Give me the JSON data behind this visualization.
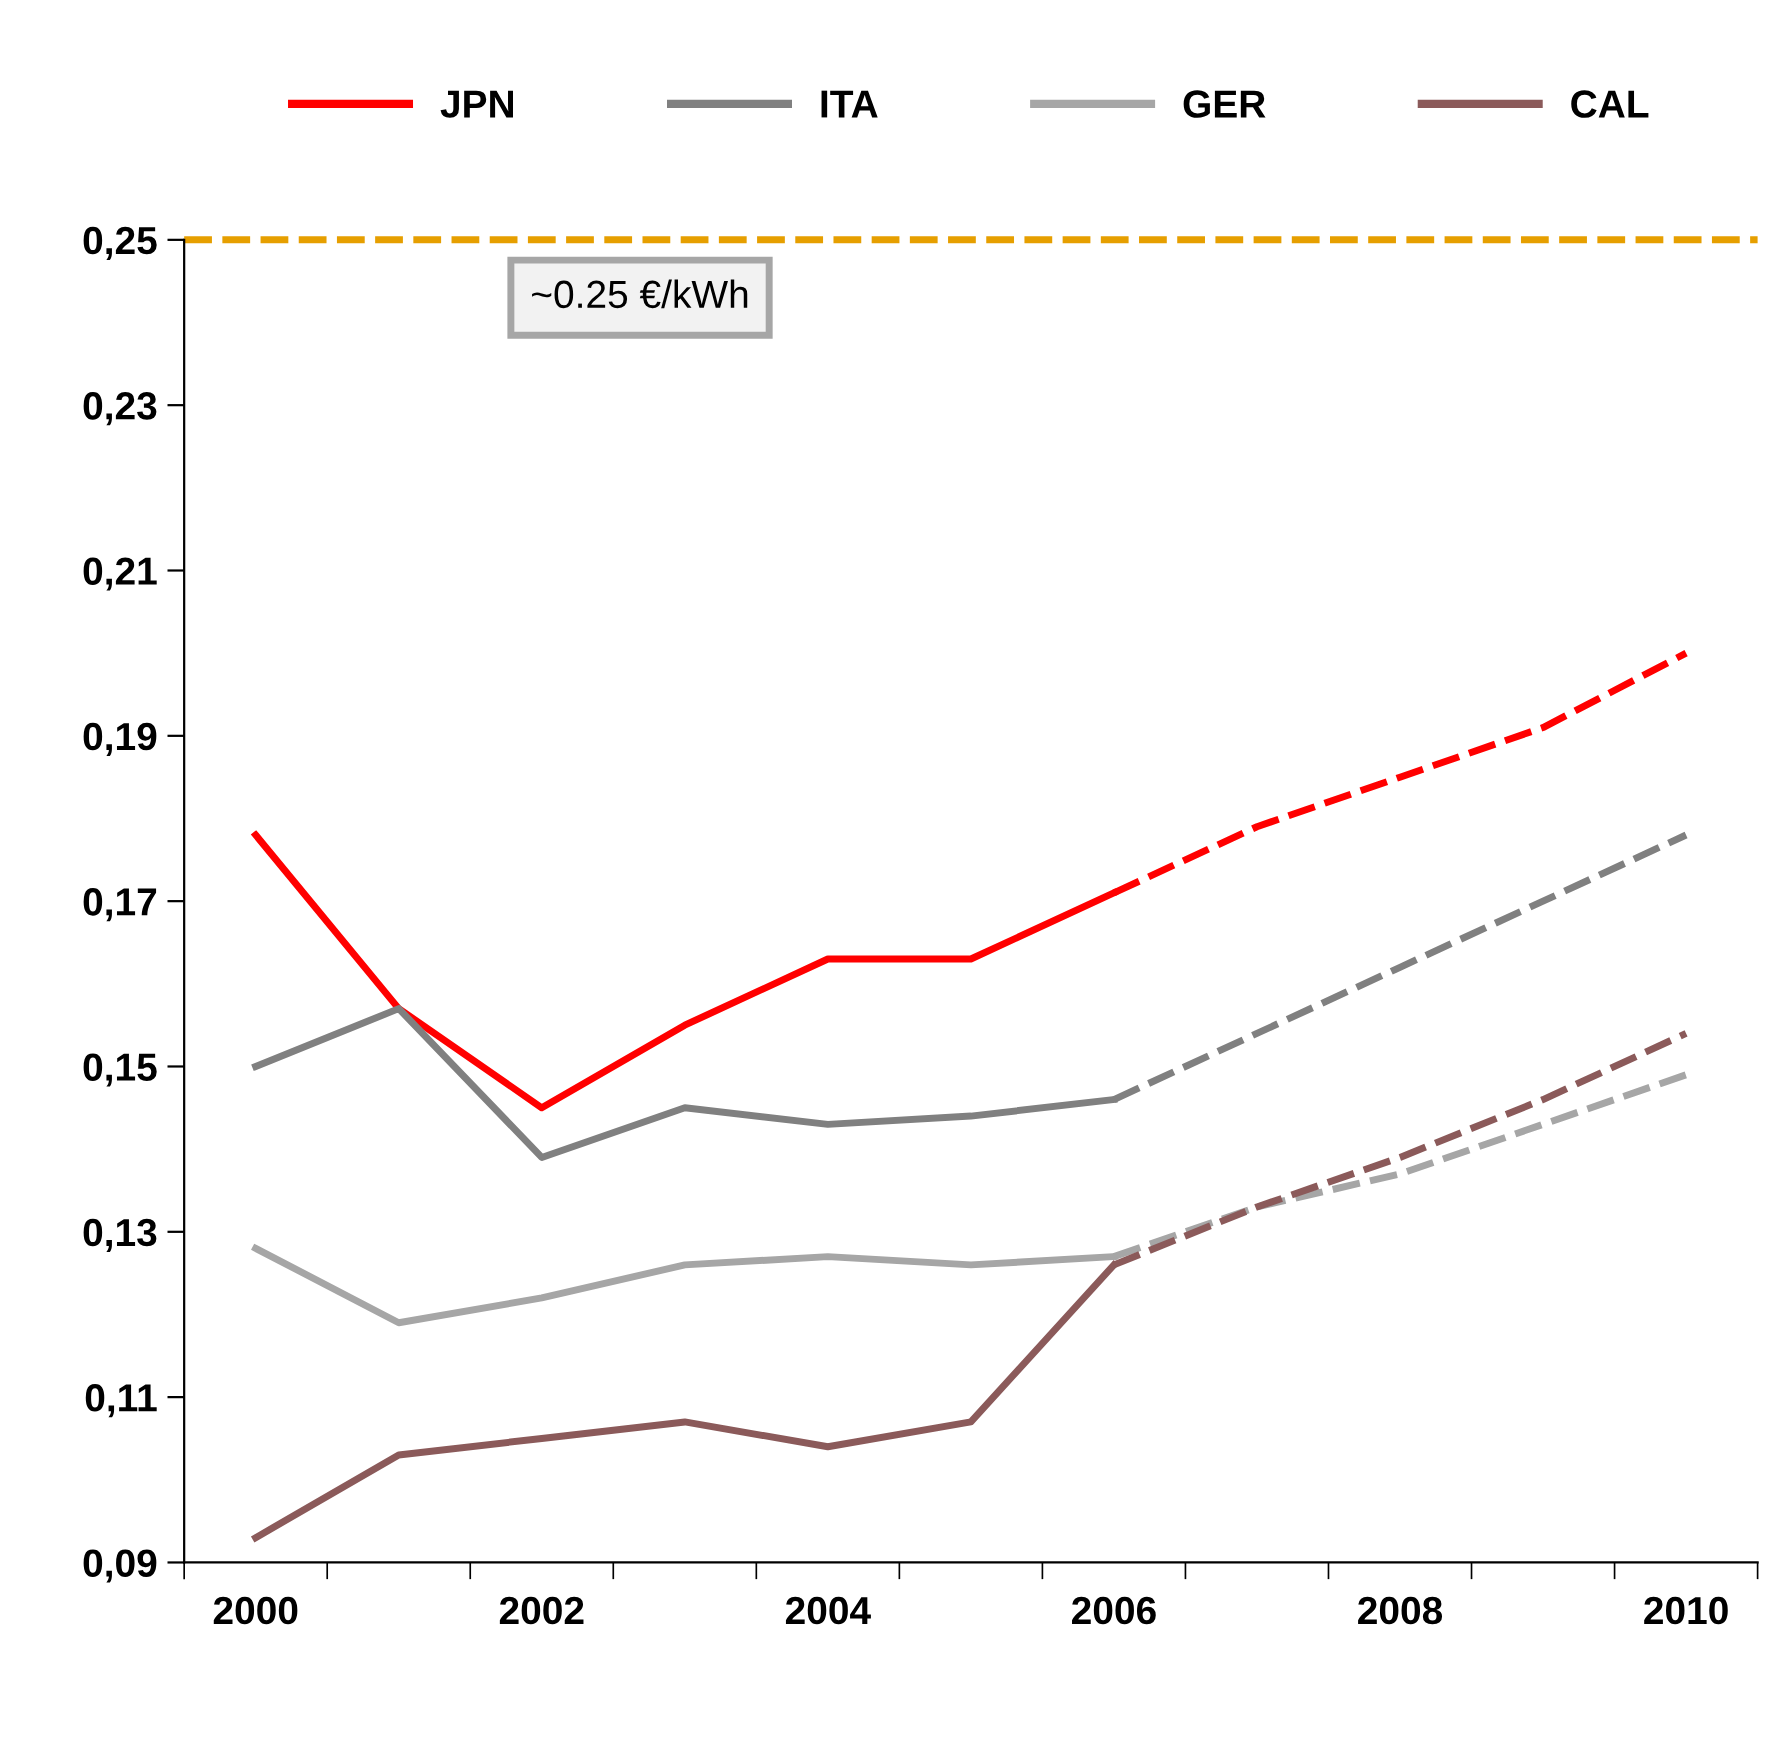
{
  "chart_data": {
    "type": "line",
    "categories": [
      "2000",
      null,
      "2002",
      null,
      "2004",
      null,
      "2006",
      null,
      "2008",
      null,
      "2010"
    ],
    "series": [
      {
        "name": "JPN",
        "color": "#ff0000",
        "values": [
          0.178,
          0.157,
          0.145,
          0.155,
          0.163,
          0.163,
          0.171,
          null,
          null,
          null,
          null
        ]
      },
      {
        "color": "#ff0000",
        "line_style": "dashed",
        "values": [
          null,
          null,
          null,
          null,
          null,
          null,
          0.171,
          0.179,
          0.185,
          0.191,
          0.2
        ]
      },
      {
        "name": "ITA",
        "color": "#808080",
        "values": [
          0.15,
          0.157,
          0.139,
          0.145,
          0.143,
          0.144,
          0.146,
          null,
          null,
          null,
          null
        ]
      },
      {
        "color": "#808080",
        "line_style": "dashed",
        "values": [
          null,
          null,
          null,
          null,
          null,
          null,
          0.146,
          0.154,
          0.162,
          0.17,
          0.178
        ]
      },
      {
        "name": "GER",
        "color": "#a6a6a6",
        "values": [
          0.128,
          0.119,
          0.122,
          0.126,
          0.127,
          0.126,
          0.127,
          null,
          null,
          null,
          null
        ]
      },
      {
        "color": "#a6a6a6",
        "line_style": "dashed",
        "values": [
          null,
          null,
          null,
          null,
          null,
          null,
          0.127,
          0.133,
          0.137,
          0.143,
          0.149
        ]
      },
      {
        "name": "CAL",
        "color": "#8b5a5a",
        "values": [
          0.093,
          0.103,
          0.105,
          0.107,
          0.104,
          0.107,
          0.126,
          null,
          null,
          null,
          null
        ]
      },
      {
        "color": "#8b5a5a",
        "line_style": "dashed",
        "values": [
          null,
          null,
          null,
          null,
          null,
          null,
          0.126,
          0.133,
          0.139,
          0.146,
          0.154
        ]
      }
    ],
    "ylim": [
      0.09,
      0.25
    ],
    "yticks": [
      {
        "value": 0.09,
        "label": "0,09"
      },
      {
        "value": 0.11,
        "label": "0,11"
      },
      {
        "value": 0.13,
        "label": "0,13"
      },
      {
        "value": 0.15,
        "label": "0,15"
      },
      {
        "value": 0.17,
        "label": "0,17"
      },
      {
        "value": 0.19,
        "label": "0,19"
      },
      {
        "value": 0.21,
        "label": "0,21"
      },
      {
        "value": 0.23,
        "label": "0,23"
      },
      {
        "value": 0.25,
        "label": "0,25"
      }
    ],
    "ref_lines": [
      {
        "axis": "y",
        "value": 0.25,
        "label": "~0.25 €/kWh",
        "color": "#e69f00",
        "line_style": "dashed"
      }
    ],
    "legend": "top",
    "grid": false,
    "marker": "none",
    "line_style": "solid"
  }
}
